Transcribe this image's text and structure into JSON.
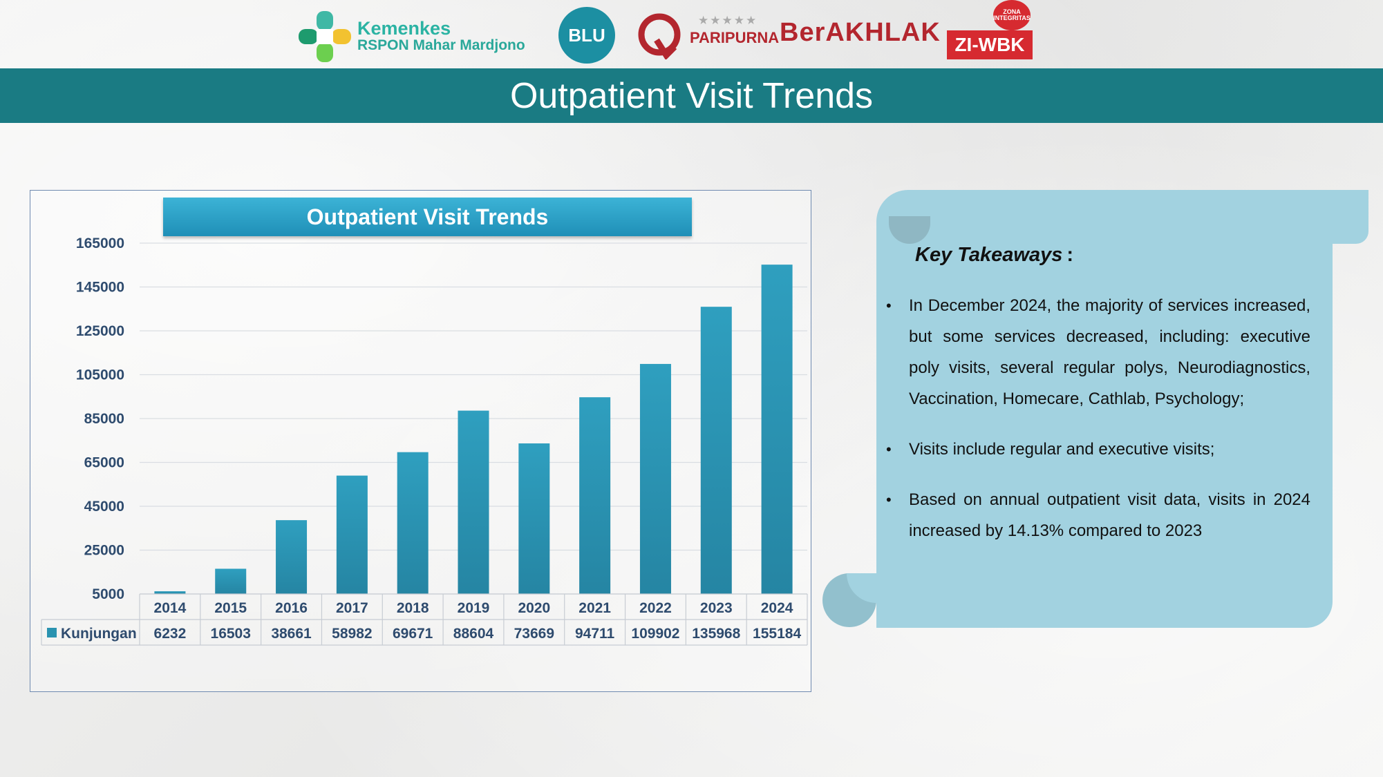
{
  "header": {
    "logos": {
      "kemenkes_line1": "Kemenkes",
      "kemenkes_line2": "RSPON Mahar Mardjono",
      "blu": "BLU",
      "paripurna": "PARIPURNA",
      "paripurna_stars": "★★★★★",
      "berakhlak": "BerAKHLAK",
      "ziwbk": "ZI-WBK",
      "ziwbk_badge": "ZONA INTEGRITAS"
    },
    "title": "Outpatient Visit Trends"
  },
  "colors": {
    "banner": "#1a7b83",
    "bar": "#2a93b0",
    "panel": "#a2d2e0"
  },
  "chart_data": {
    "type": "bar",
    "title": "Outpatient Visit Trends",
    "categories": [
      "2014",
      "2015",
      "2016",
      "2017",
      "2018",
      "2019",
      "2020",
      "2021",
      "2022",
      "2023",
      "2024"
    ],
    "series": [
      {
        "name": "Kunjungan",
        "values": [
          6232,
          16503,
          38661,
          58982,
          69671,
          88604,
          73669,
          94711,
          109902,
          135968,
          155184
        ]
      }
    ],
    "yticks": [
      "165000",
      "145000",
      "125000",
      "105000",
      "85000",
      "65000",
      "45000",
      "25000",
      "5000"
    ],
    "ylim": [
      5000,
      165000
    ],
    "grid": true,
    "legend": "data-table",
    "xlabel": "",
    "ylabel": ""
  },
  "takeaways": {
    "heading": "Key Takeaways",
    "colon": ":",
    "items": [
      "In December 2024, the majority of services increased, but some services decreased, including: executive poly visits, several regular polys, Neurodiagnostics, Vaccination, Homecare, Cathlab, Psychology;",
      "Visits include regular and executive visits;",
      "Based on annual outpatient visit data, visits in 2024 increased by 14.13% compared to 2023"
    ]
  }
}
